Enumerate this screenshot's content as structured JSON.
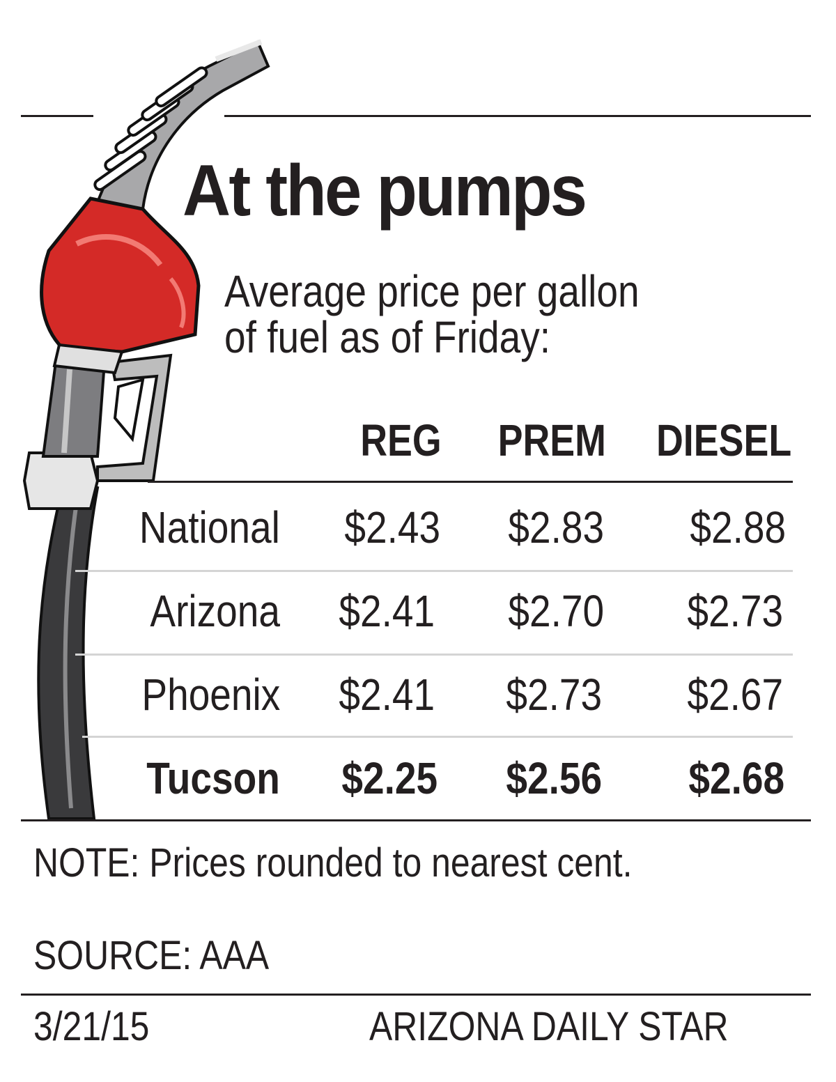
{
  "title": "At the pumps",
  "subtitle_line1": "Average price per gallon",
  "subtitle_line2": "of fuel as of Friday:",
  "chart_data": {
    "type": "table",
    "columns": [
      "REG",
      "PREM",
      "DIESEL"
    ],
    "rows": [
      {
        "label": "National",
        "values": [
          "$2.43",
          "$2.83",
          "$2.88"
        ],
        "bold": false
      },
      {
        "label": "Arizona",
        "values": [
          "$2.41",
          "$2.70",
          "$2.73"
        ],
        "bold": false
      },
      {
        "label": "Phoenix",
        "values": [
          "$2.41",
          "$2.73",
          "$2.67"
        ],
        "bold": false
      },
      {
        "label": "Tucson",
        "values": [
          "$2.25",
          "$2.56",
          "$2.68"
        ],
        "bold": true
      }
    ]
  },
  "note": "NOTE: Prices rounded to nearest cent.",
  "source": "SOURCE: AAA",
  "date": "3/21/15",
  "publisher": "ARIZONA DAILY STAR",
  "colors": {
    "nozzle_red": "#d42a27",
    "hose": "#3a3a3c",
    "ink": "#231f20",
    "divider": "#d4d4d4"
  }
}
